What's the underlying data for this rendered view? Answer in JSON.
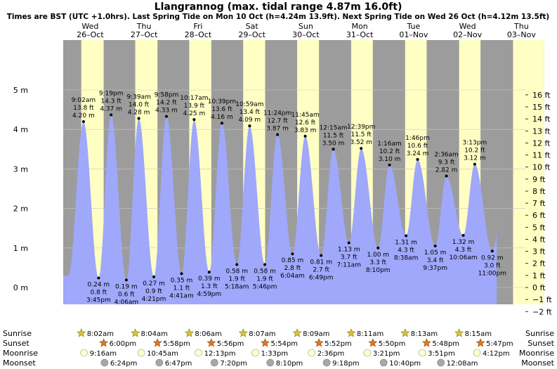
{
  "chart_data": {
    "type": "area",
    "title": "Llangrannog (max. tidal range 4.87m 16.0ft)",
    "subtitle": "Times are BST (UTC +1.0hrs). Last Spring Tide on Mon 10 Oct (h=4.24m 13.9ft). Next Spring Tide on Wed 26 Oct (h=4.12m 13.5ft)",
    "ylim_m": [
      -0.5,
      5.0
    ],
    "ylim_ft": [
      -2.5,
      16.4
    ],
    "yticks_left": [
      {
        "v": 0,
        "label": "0 m"
      },
      {
        "v": 1,
        "label": "1 m"
      },
      {
        "v": 2,
        "label": "2 m"
      },
      {
        "v": 3,
        "label": "3 m"
      },
      {
        "v": 4,
        "label": "4 m"
      },
      {
        "v": 5,
        "label": "5 m"
      }
    ],
    "yticks_right": [
      {
        "ft": -2,
        "label": "−2 ft"
      },
      {
        "ft": -1,
        "label": "−1 ft"
      },
      {
        "ft": 0,
        "label": "0 ft"
      },
      {
        "ft": 1,
        "label": "1 ft"
      },
      {
        "ft": 2,
        "label": "2 ft"
      },
      {
        "ft": 3,
        "label": "3 ft"
      },
      {
        "ft": 4,
        "label": "4 ft"
      },
      {
        "ft": 5,
        "label": "5 ft"
      },
      {
        "ft": 6,
        "label": "6 ft"
      },
      {
        "ft": 7,
        "label": "7 ft"
      },
      {
        "ft": 8,
        "label": "8 ft"
      },
      {
        "ft": 9,
        "label": "9 ft"
      },
      {
        "ft": 10,
        "label": "10 ft"
      },
      {
        "ft": 11,
        "label": "11 ft"
      },
      {
        "ft": 12,
        "label": "12 ft"
      },
      {
        "ft": 13,
        "label": "13 ft"
      },
      {
        "ft": 14,
        "label": "14 ft"
      },
      {
        "ft": 15,
        "label": "15 ft"
      },
      {
        "ft": 16,
        "label": "16 ft"
      }
    ],
    "days": [
      {
        "dow": "Wed",
        "date": "26–Oct",
        "weekend": false,
        "sunrise": "8:02am",
        "sunset": "6:00pm",
        "moonrise": "9:16am",
        "moonset": "6:24pm"
      },
      {
        "dow": "Thu",
        "date": "27–Oct",
        "weekend": false,
        "sunrise": "8:04am",
        "sunset": "5:58pm",
        "moonrise": "10:45am",
        "moonset": "6:47pm"
      },
      {
        "dow": "Fri",
        "date": "28–Oct",
        "weekend": false,
        "sunrise": "8:06am",
        "sunset": "5:56pm",
        "moonrise": "12:13pm",
        "moonset": "7:20pm"
      },
      {
        "dow": "Sat",
        "date": "29–Oct",
        "weekend": true,
        "sunrise": "8:07am",
        "sunset": "5:54pm",
        "moonrise": "1:33pm",
        "moonset": "8:10pm"
      },
      {
        "dow": "Sun",
        "date": "30–Oct",
        "weekend": true,
        "sunrise": "8:09am",
        "sunset": "5:52pm",
        "moonrise": "2:36pm",
        "moonset": "9:18pm"
      },
      {
        "dow": "Mon",
        "date": "31–Oct",
        "weekend": false,
        "sunrise": "8:11am",
        "sunset": "5:50pm",
        "moonrise": "3:21pm",
        "moonset": "10:40pm"
      },
      {
        "dow": "Tue",
        "date": "01–Nov",
        "weekend": false,
        "sunrise": "8:13am",
        "sunset": "5:48pm",
        "moonrise": "3:51pm",
        "moonset": ""
      },
      {
        "dow": "Wed",
        "date": "02–Nov",
        "weekend": false,
        "sunrise": "8:15am",
        "sunset": "5:47pm",
        "moonrise": "4:12pm",
        "moonset": "12:08am"
      },
      {
        "dow": "Thu",
        "date": "03–Nov",
        "weekend": false,
        "sunrise": "",
        "sunset": "",
        "moonrise": "",
        "moonset": ""
      }
    ],
    "tides": [
      {
        "day": 0,
        "time": "9:02 am",
        "m": 4.2,
        "ft": "13.8 ft",
        "type": "high"
      },
      {
        "day": 0,
        "time": "3:45 pm",
        "m": 0.24,
        "ft": "0.8 ft",
        "type": "low"
      },
      {
        "day": 0,
        "time": "9:19 pm",
        "m": 4.37,
        "ft": "14.3 ft",
        "type": "high"
      },
      {
        "day": 1,
        "time": "4:06 am",
        "m": 0.19,
        "ft": "0.6 ft",
        "type": "low"
      },
      {
        "day": 1,
        "time": "9:39 am",
        "m": 4.28,
        "ft": "14.0 ft",
        "type": "high"
      },
      {
        "day": 1,
        "time": "4:21 pm",
        "m": 0.27,
        "ft": "0.9 ft",
        "type": "low"
      },
      {
        "day": 1,
        "time": "9:58 pm",
        "m": 4.33,
        "ft": "14.2 ft",
        "type": "high"
      },
      {
        "day": 2,
        "time": "4:41 am",
        "m": 0.35,
        "ft": "1.1 ft",
        "type": "low"
      },
      {
        "day": 2,
        "time": "10:17 am",
        "m": 4.25,
        "ft": "13.9 ft",
        "type": "high"
      },
      {
        "day": 2,
        "time": "4:59 pm",
        "m": 0.39,
        "ft": "1.3 ft",
        "type": "low"
      },
      {
        "day": 2,
        "time": "10:39 pm",
        "m": 4.16,
        "ft": "13.6 ft",
        "type": "high"
      },
      {
        "day": 3,
        "time": "5:18 am",
        "m": 0.58,
        "ft": "1.9 ft",
        "type": "low"
      },
      {
        "day": 3,
        "time": "10:59 am",
        "m": 4.09,
        "ft": "13.4 ft",
        "type": "high"
      },
      {
        "day": 3,
        "time": "5:46 pm",
        "m": 0.58,
        "ft": "1.9 ft",
        "type": "low"
      },
      {
        "day": 3,
        "time": "11:24 pm",
        "m": 3.87,
        "ft": "12.7 ft",
        "type": "high"
      },
      {
        "day": 4,
        "time": "6:04 am",
        "m": 0.85,
        "ft": "2.8 ft",
        "type": "low"
      },
      {
        "day": 4,
        "time": "11:45 am",
        "m": 3.83,
        "ft": "12.6 ft",
        "type": "high"
      },
      {
        "day": 4,
        "time": "6:49 pm",
        "m": 0.81,
        "ft": "2.7 ft",
        "type": "low"
      },
      {
        "day": 5,
        "time": "12:15 am",
        "m": 3.5,
        "ft": "11.5 ft",
        "type": "high"
      },
      {
        "day": 5,
        "time": "7:11 am",
        "m": 1.13,
        "ft": "3.7 ft",
        "type": "low"
      },
      {
        "day": 5,
        "time": "12:39 pm",
        "m": 3.52,
        "ft": "11.5 ft",
        "type": "high"
      },
      {
        "day": 5,
        "time": "8:10 pm",
        "m": 1.0,
        "ft": "3.3 ft",
        "type": "low"
      },
      {
        "day": 6,
        "time": "1:16 am",
        "m": 3.1,
        "ft": "10.2 ft",
        "type": "high"
      },
      {
        "day": 6,
        "time": "8:38 am",
        "m": 1.31,
        "ft": "4.3 ft",
        "type": "low"
      },
      {
        "day": 6,
        "time": "1:46 pm",
        "m": 3.24,
        "ft": "10.6 ft",
        "type": "high"
      },
      {
        "day": 6,
        "time": "9:37 pm",
        "m": 1.05,
        "ft": "3.4 ft",
        "type": "low"
      },
      {
        "day": 7,
        "time": "2:36 am",
        "m": 2.82,
        "ft": "9.3 ft",
        "type": "high"
      },
      {
        "day": 7,
        "time": "10:06 am",
        "m": 1.32,
        "ft": "4.3 ft",
        "type": "low"
      },
      {
        "day": 7,
        "time": "3:13 pm",
        "m": 3.12,
        "ft": "10.2 ft",
        "type": "high"
      },
      {
        "day": 7,
        "time": "11:00 pm",
        "m": 0.92,
        "ft": "3.0 ft",
        "type": "low"
      }
    ],
    "row_labels": {
      "sunrise": "Sunrise",
      "sunset": "Sunset",
      "moonrise": "Moonrise",
      "moonset": "Moonset"
    },
    "colors": {
      "water": "#9fa8fb",
      "day": "#ffffc4",
      "night": "#9c9c9c",
      "weekend_text": "#cc0000",
      "sun": "#d8c23a",
      "sunset": "#e07820",
      "moonrise": "#ffffcc",
      "moonset": "#a8a8a0"
    }
  }
}
